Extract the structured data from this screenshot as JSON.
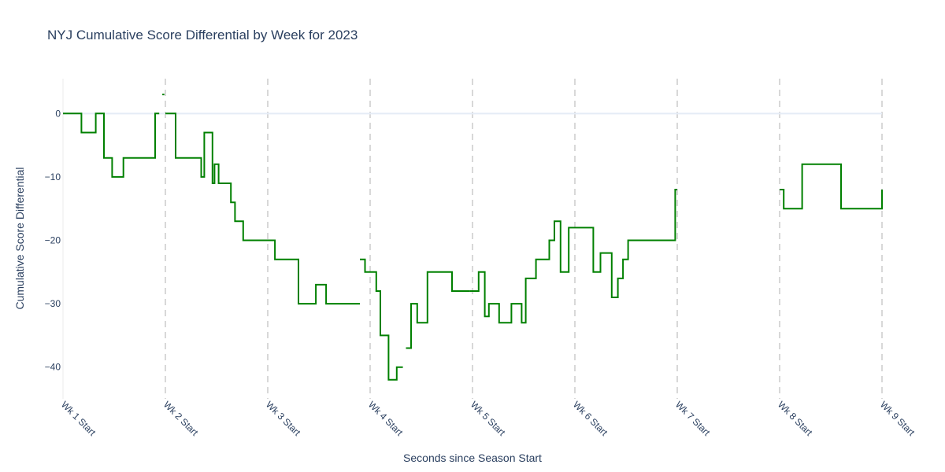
{
  "chart_data": {
    "type": "line",
    "title": "NYJ Cumulative Score Differential by Week for 2023",
    "xlabel": "Seconds since Season Start",
    "ylabel": "Cumulative Score Differential",
    "xlim": [
      0,
      8
    ],
    "ylim": [
      -45,
      5.5
    ],
    "y_ticks": [
      0,
      -10,
      -20,
      -30,
      -40
    ],
    "x_ticks": [
      {
        "value": 0,
        "label": "Wk 1 Start"
      },
      {
        "value": 1,
        "label": "Wk 2 Start"
      },
      {
        "value": 2,
        "label": "Wk 3 Start"
      },
      {
        "value": 3,
        "label": "Wk 4 Start"
      },
      {
        "value": 4,
        "label": "Wk 5 Start"
      },
      {
        "value": 5,
        "label": "Wk 6 Start"
      },
      {
        "value": 6,
        "label": "Wk 7 Start"
      },
      {
        "value": 7,
        "label": "Wk 8 Start"
      },
      {
        "value": 8,
        "label": "Wk 9 Start"
      }
    ],
    "grid": {
      "vertical_week_lines": true,
      "horizontal": false
    },
    "zero_line": true,
    "line_shape": "step",
    "series_color": "#008000",
    "week_line_color": "#cccccc",
    "segments": [
      {
        "x": [
          0.0,
          0.18,
          0.18,
          0.32,
          0.32,
          0.4,
          0.4,
          0.48,
          0.48,
          0.59,
          0.59,
          0.9,
          0.9,
          0.94
        ],
        "y": [
          0,
          0,
          -3,
          -3,
          0,
          0,
          -7,
          -7,
          -10,
          -10,
          -7,
          -7,
          0,
          0
        ]
      },
      {
        "x": [
          0.97,
          0.99
        ],
        "y": [
          3,
          3
        ]
      },
      {
        "x": [
          1.0,
          1.1,
          1.1,
          1.35,
          1.35,
          1.38,
          1.38,
          1.46,
          1.46,
          1.48,
          1.48,
          1.52,
          1.52,
          1.64,
          1.64,
          1.68,
          1.68,
          1.76,
          1.76,
          1.86,
          1.86,
          1.9,
          1.9,
          2.07,
          2.07,
          2.3,
          2.3,
          2.47,
          2.47,
          2.57,
          2.57,
          2.9
        ],
        "y": [
          0,
          0,
          -7,
          -7,
          -10,
          -10,
          -3,
          -3,
          -11,
          -11,
          -8,
          -8,
          -11,
          -11,
          -14,
          -14,
          -17,
          -17,
          -20,
          -20,
          -20,
          -20,
          -20,
          -20,
          -23,
          -23,
          -30,
          -30,
          -27,
          -27,
          -30,
          -30
        ]
      },
      {
        "x": [
          2.9,
          2.95,
          2.95,
          3.0,
          3.0,
          3.06,
          3.06,
          3.1,
          3.1,
          3.18,
          3.18,
          3.26,
          3.26,
          3.32
        ],
        "y": [
          -23,
          -23,
          -25,
          -25,
          -25,
          -25,
          -28,
          -28,
          -35,
          -35,
          -42,
          -42,
          -40,
          -40
        ]
      },
      {
        "x": [
          3.35,
          3.4,
          3.4,
          3.46,
          3.46,
          3.56,
          3.56,
          3.8,
          3.8,
          3.97
        ],
        "y": [
          -37,
          -37,
          -30,
          -30,
          -33,
          -33,
          -25,
          -25,
          -28,
          -28
        ]
      },
      {
        "x": [
          3.97,
          4.06,
          4.06,
          4.12,
          4.12,
          4.16,
          4.16,
          4.26,
          4.26,
          4.38,
          4.38,
          4.48,
          4.48,
          4.52,
          4.52,
          4.6,
          4.6,
          4.62,
          4.62,
          4.75,
          4.75,
          4.8,
          4.8,
          4.86,
          4.86,
          4.9,
          4.9,
          4.94,
          4.94,
          5.0
        ],
        "y": [
          -28,
          -28,
          -25,
          -25,
          -32,
          -32,
          -30,
          -30,
          -33,
          -33,
          -30,
          -30,
          -33,
          -33,
          -26,
          -26,
          -26,
          -26,
          -23,
          -23,
          -20,
          -20,
          -17,
          -17,
          -25,
          -25,
          -25,
          -25,
          -18,
          -18
        ]
      },
      {
        "x": [
          5.0,
          5.18,
          5.18,
          5.25,
          5.25,
          5.36,
          5.36,
          5.42,
          5.42,
          5.47,
          5.47,
          5.52,
          5.52,
          5.75,
          5.75,
          5.98,
          5.98,
          6.0
        ],
        "y": [
          -18,
          -18,
          -25,
          -25,
          -22,
          -22,
          -29,
          -29,
          -26,
          -26,
          -23,
          -23,
          -20,
          -20,
          -20,
          -20,
          -12,
          -12
        ]
      },
      {
        "x": [
          7.0,
          7.04,
          7.04,
          7.22,
          7.22,
          7.6,
          7.6,
          8.0,
          8.0
        ],
        "y": [
          -12,
          -12,
          -15,
          -15,
          -8,
          -8,
          -15,
          -15,
          -12
        ]
      }
    ]
  }
}
